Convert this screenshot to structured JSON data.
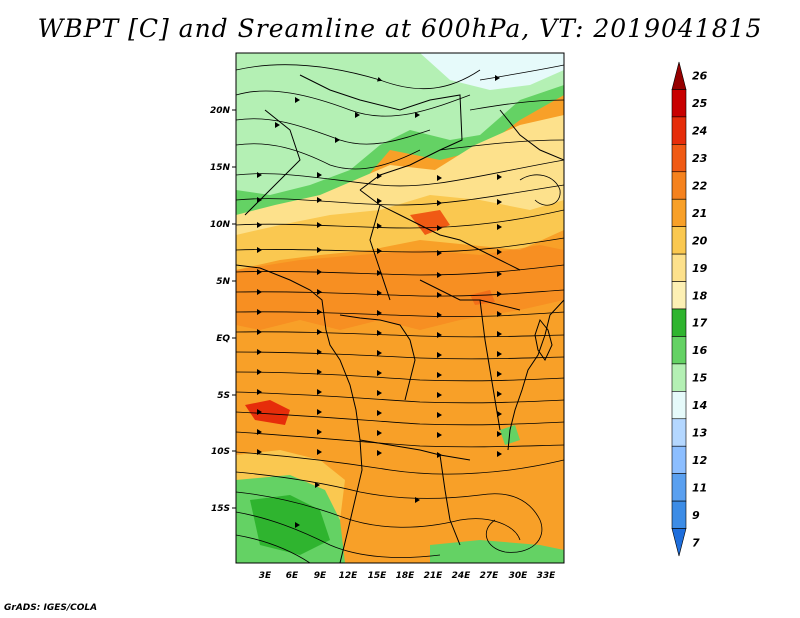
{
  "title": "WBPT [C] and Sreamline at 600hPa, VT: 2019041815",
  "credit": "GrADS: IGES/COLA",
  "map": {
    "lat_ticks": [
      "20N",
      "15N",
      "10N",
      "5N",
      "EQ",
      "5S",
      "10S",
      "15S"
    ],
    "lon_ticks": [
      "3E",
      "6E",
      "9E",
      "12E",
      "15E",
      "18E",
      "21E",
      "24E",
      "27E",
      "30E",
      "33E"
    ],
    "region": "Central and Southern Africa",
    "streamlines": "westerly flow with arrows"
  },
  "colorbar": {
    "labels": [
      "26",
      "25",
      "24",
      "23",
      "22",
      "21",
      "20",
      "19",
      "18",
      "17",
      "16",
      "15",
      "14",
      "13",
      "12",
      "11",
      "9",
      "7"
    ],
    "colors": [
      "#960000",
      "#c80000",
      "#e62d0a",
      "#f05a14",
      "#f5821e",
      "#f8a028",
      "#fac850",
      "#fde18c",
      "#fdf0b4",
      "#2fb42f",
      "#64d264",
      "#b4f0b4",
      "#e6fafa",
      "#b4d7ff",
      "#8cbeff",
      "#5aa0f0",
      "#3c8ce6",
      "#1e6edc"
    ]
  }
}
